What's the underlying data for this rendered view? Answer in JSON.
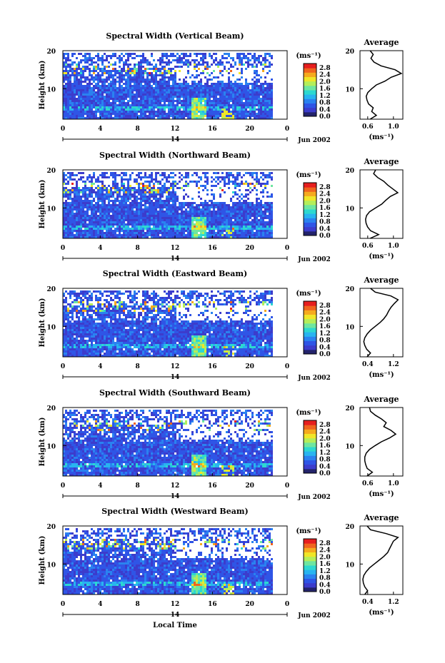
{
  "figure": {
    "xlabel": "Local Time",
    "xticks": [
      "0",
      "4",
      "8",
      "12",
      "16",
      "20",
      "0"
    ],
    "day_label": "14",
    "date_label": "Jun 2002",
    "ylabel": "Height (km)",
    "yticks": [
      "20",
      "10"
    ],
    "colorbar_unit": "(ms⁻¹)",
    "colorbar_ticks": [
      "2.8",
      "2.4",
      "2.0",
      "1.6",
      "1.2",
      "0.8",
      "0.4",
      "0.0"
    ],
    "colormap": [
      "#23236b",
      "#3c3ccc",
      "#2f55e6",
      "#2a82f0",
      "#28b4f0",
      "#2dd8d0",
      "#6ee6a0",
      "#b4ee5a",
      "#f0e628",
      "#f5aa1e",
      "#f0641e",
      "#e61e1e"
    ],
    "profile_title": "Average",
    "profile_unit": "(ms⁻¹)",
    "line_color": "#000000"
  },
  "chart_data": [
    {
      "type": "heatmap",
      "title": "Spectral Width (Vertical Beam)",
      "xlabel": "Local Time",
      "ylabel": "Height (km)",
      "xlim": [
        0,
        24
      ],
      "ylim": [
        2,
        20
      ],
      "clim": [
        0,
        3.0
      ],
      "data_end_hour": 22.3,
      "profile": {
        "title": "Average",
        "xlabel": "(ms⁻¹)",
        "xlim": [
          0.45,
          1.0
        ],
        "xticks": [
          "0.6",
          "1.0"
        ],
        "height": [
          2,
          3,
          4,
          5,
          6,
          7,
          8,
          9,
          10,
          11,
          12,
          13,
          14,
          15,
          16,
          17,
          18,
          19,
          20
        ],
        "values": [
          0.58,
          0.66,
          0.6,
          0.62,
          0.56,
          0.54,
          0.53,
          0.55,
          0.6,
          0.66,
          0.77,
          0.85,
          0.98,
          0.9,
          0.72,
          0.63,
          0.59,
          0.62,
          0.58
        ]
      }
    },
    {
      "type": "heatmap",
      "title": "Spectral Width (Northward Beam)",
      "xlabel": "Local Time",
      "ylabel": "Height (km)",
      "xlim": [
        0,
        24
      ],
      "ylim": [
        2,
        20
      ],
      "clim": [
        0,
        3.0
      ],
      "data_end_hour": 22.3,
      "profile": {
        "title": "Average",
        "xlabel": "(ms⁻¹)",
        "xlim": [
          0.35,
          1.2
        ],
        "xticks": [
          "0.6",
          "1.0"
        ],
        "height": [
          2,
          3,
          4,
          5,
          6,
          7,
          8,
          9,
          10,
          11,
          12,
          13,
          14,
          15,
          16,
          17,
          18,
          19,
          20
        ],
        "values": [
          0.55,
          0.72,
          0.56,
          0.5,
          0.47,
          0.46,
          0.48,
          0.54,
          0.66,
          0.78,
          0.86,
          0.95,
          1.1,
          1.0,
          0.9,
          0.82,
          0.7,
          0.62,
          0.66
        ]
      }
    },
    {
      "type": "heatmap",
      "title": "Spectral Width (Eastward Beam)",
      "xlabel": "Local Time",
      "ylabel": "Height (km)",
      "xlim": [
        0,
        24
      ],
      "ylim": [
        2,
        20
      ],
      "clim": [
        0,
        3.0
      ],
      "data_end_hour": 22.3,
      "profile": {
        "title": "Average",
        "xlabel": "(ms⁻¹)",
        "xlim": [
          0.4,
          1.3
        ],
        "xticks": [
          "0.4",
          "1.2"
        ],
        "height": [
          2,
          3,
          4,
          5,
          6,
          7,
          8,
          9,
          10,
          11,
          12,
          13,
          14,
          15,
          16,
          17,
          18,
          19,
          20
        ],
        "values": [
          0.55,
          0.62,
          0.54,
          0.5,
          0.48,
          0.5,
          0.55,
          0.62,
          0.72,
          0.82,
          0.9,
          0.96,
          1.0,
          1.05,
          1.12,
          1.2,
          1.05,
          0.72,
          0.62
        ]
      }
    },
    {
      "type": "heatmap",
      "title": "Spectral Width (Southward Beam)",
      "xlabel": "Local Time",
      "ylabel": "Height (km)",
      "xlim": [
        0,
        24
      ],
      "ylim": [
        2,
        20
      ],
      "clim": [
        0,
        3.0
      ],
      "data_end_hour": 22.3,
      "profile": {
        "title": "Average",
        "xlabel": "(ms⁻¹)",
        "xlim": [
          0.4,
          1.3
        ],
        "xticks": [
          "0.6",
          "1.0"
        ],
        "height": [
          2,
          3,
          4,
          5,
          6,
          7,
          8,
          9,
          10,
          11,
          12,
          13,
          14,
          15,
          16,
          17,
          18,
          19,
          20
        ],
        "values": [
          0.55,
          0.66,
          0.55,
          0.52,
          0.5,
          0.5,
          0.53,
          0.6,
          0.72,
          0.85,
          1.02,
          1.15,
          1.05,
          0.9,
          0.95,
          0.85,
          0.72,
          0.62,
          0.6
        ]
      }
    },
    {
      "type": "heatmap",
      "title": "Spectral Width (Westward Beam)",
      "xlabel": "Local Time",
      "ylabel": "Height (km)",
      "xlim": [
        0,
        24
      ],
      "ylim": [
        2,
        20
      ],
      "clim": [
        0,
        3.0
      ],
      "data_end_hour": 22.3,
      "profile": {
        "title": "Average",
        "xlabel": "(ms⁻¹)",
        "xlim": [
          0.4,
          1.3
        ],
        "xticks": [
          "0.4",
          "1.2"
        ],
        "height": [
          2,
          3,
          4,
          5,
          6,
          7,
          8,
          9,
          10,
          11,
          12,
          13,
          14,
          15,
          16,
          17,
          18,
          19,
          20
        ],
        "values": [
          0.5,
          0.56,
          0.5,
          0.47,
          0.46,
          0.48,
          0.53,
          0.6,
          0.7,
          0.8,
          0.9,
          0.98,
          1.02,
          1.06,
          1.1,
          1.2,
          0.95,
          0.62,
          0.55
        ]
      }
    }
  ]
}
